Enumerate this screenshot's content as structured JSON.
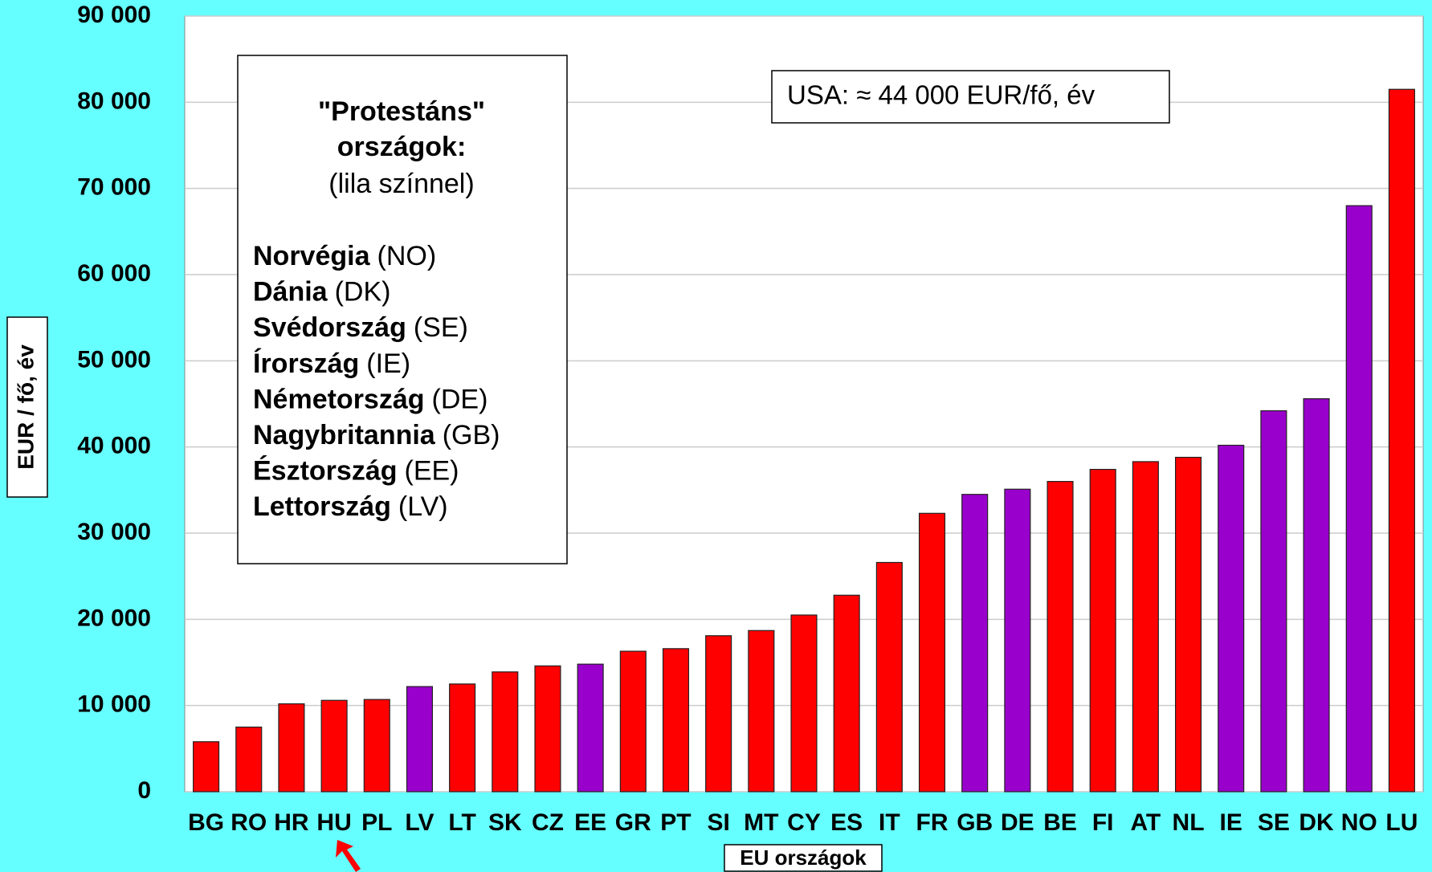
{
  "chart_data": {
    "type": "bar",
    "y_label": "EUR / fő, év",
    "x_label": "EU országok",
    "annotation": "USA: ≈ 44 000 EUR/fő, év",
    "note": {
      "title_lines": [
        "\"Protestáns\"",
        "országok:"
      ],
      "subtitle": "(lila színnel)",
      "items": [
        {
          "name": "Norvégia",
          "code": "(NO)"
        },
        {
          "name": "Dánia",
          "code": "(DK)"
        },
        {
          "name": "Svédország",
          "code": "(SE)"
        },
        {
          "name": "Írország",
          "code": "(IE)"
        },
        {
          "name": "Németország",
          "code": "(DE)"
        },
        {
          "name": "Nagybritannia",
          "code": "(GB)"
        },
        {
          "name": "Észtország",
          "code": "(EE)"
        },
        {
          "name": "Lettország",
          "code": "(LV)"
        }
      ]
    },
    "categories": [
      "BG",
      "RO",
      "HR",
      "HU",
      "PL",
      "LV",
      "LT",
      "SK",
      "CZ",
      "EE",
      "GR",
      "PT",
      "SI",
      "MT",
      "CY",
      "ES",
      "IT",
      "FR",
      "GB",
      "DE",
      "BE",
      "FI",
      "AT",
      "NL",
      "IE",
      "SE",
      "DK",
      "NO",
      "LU"
    ],
    "values": [
      5800,
      7500,
      10200,
      10600,
      10700,
      12200,
      12500,
      13900,
      14600,
      14800,
      16300,
      16600,
      18100,
      18700,
      20500,
      22800,
      26600,
      32300,
      34500,
      35100,
      36000,
      37400,
      38300,
      38800,
      40200,
      44200,
      45600,
      68000,
      81500
    ],
    "colors": [
      "#ff0000",
      "#ff0000",
      "#ff0000",
      "#ff0000",
      "#ff0000",
      "#9900cc",
      "#ff0000",
      "#ff0000",
      "#ff0000",
      "#9900cc",
      "#ff0000",
      "#ff0000",
      "#ff0000",
      "#ff0000",
      "#ff0000",
      "#ff0000",
      "#ff0000",
      "#ff0000",
      "#9900cc",
      "#9900cc",
      "#ff0000",
      "#ff0000",
      "#ff0000",
      "#ff0000",
      "#9900cc",
      "#9900cc",
      "#9900cc",
      "#9900cc",
      "#ff0000"
    ],
    "ylim": [
      0,
      90000
    ],
    "yticks": [
      0,
      {
        "value": 10000,
        "label": "10 000"
      },
      {
        "value": 20000,
        "label": "20 000"
      },
      {
        "value": 30000,
        "label": "30 000"
      },
      {
        "value": 40000,
        "label": "40 000"
      },
      {
        "value": 50000,
        "label": "50 000"
      },
      {
        "value": 60000,
        "label": "60 000"
      },
      {
        "value": 70000,
        "label": "70 000"
      },
      {
        "value": 80000,
        "label": "80 000"
      },
      {
        "value": 90000,
        "label": "90 000"
      }
    ],
    "grid": true
  }
}
